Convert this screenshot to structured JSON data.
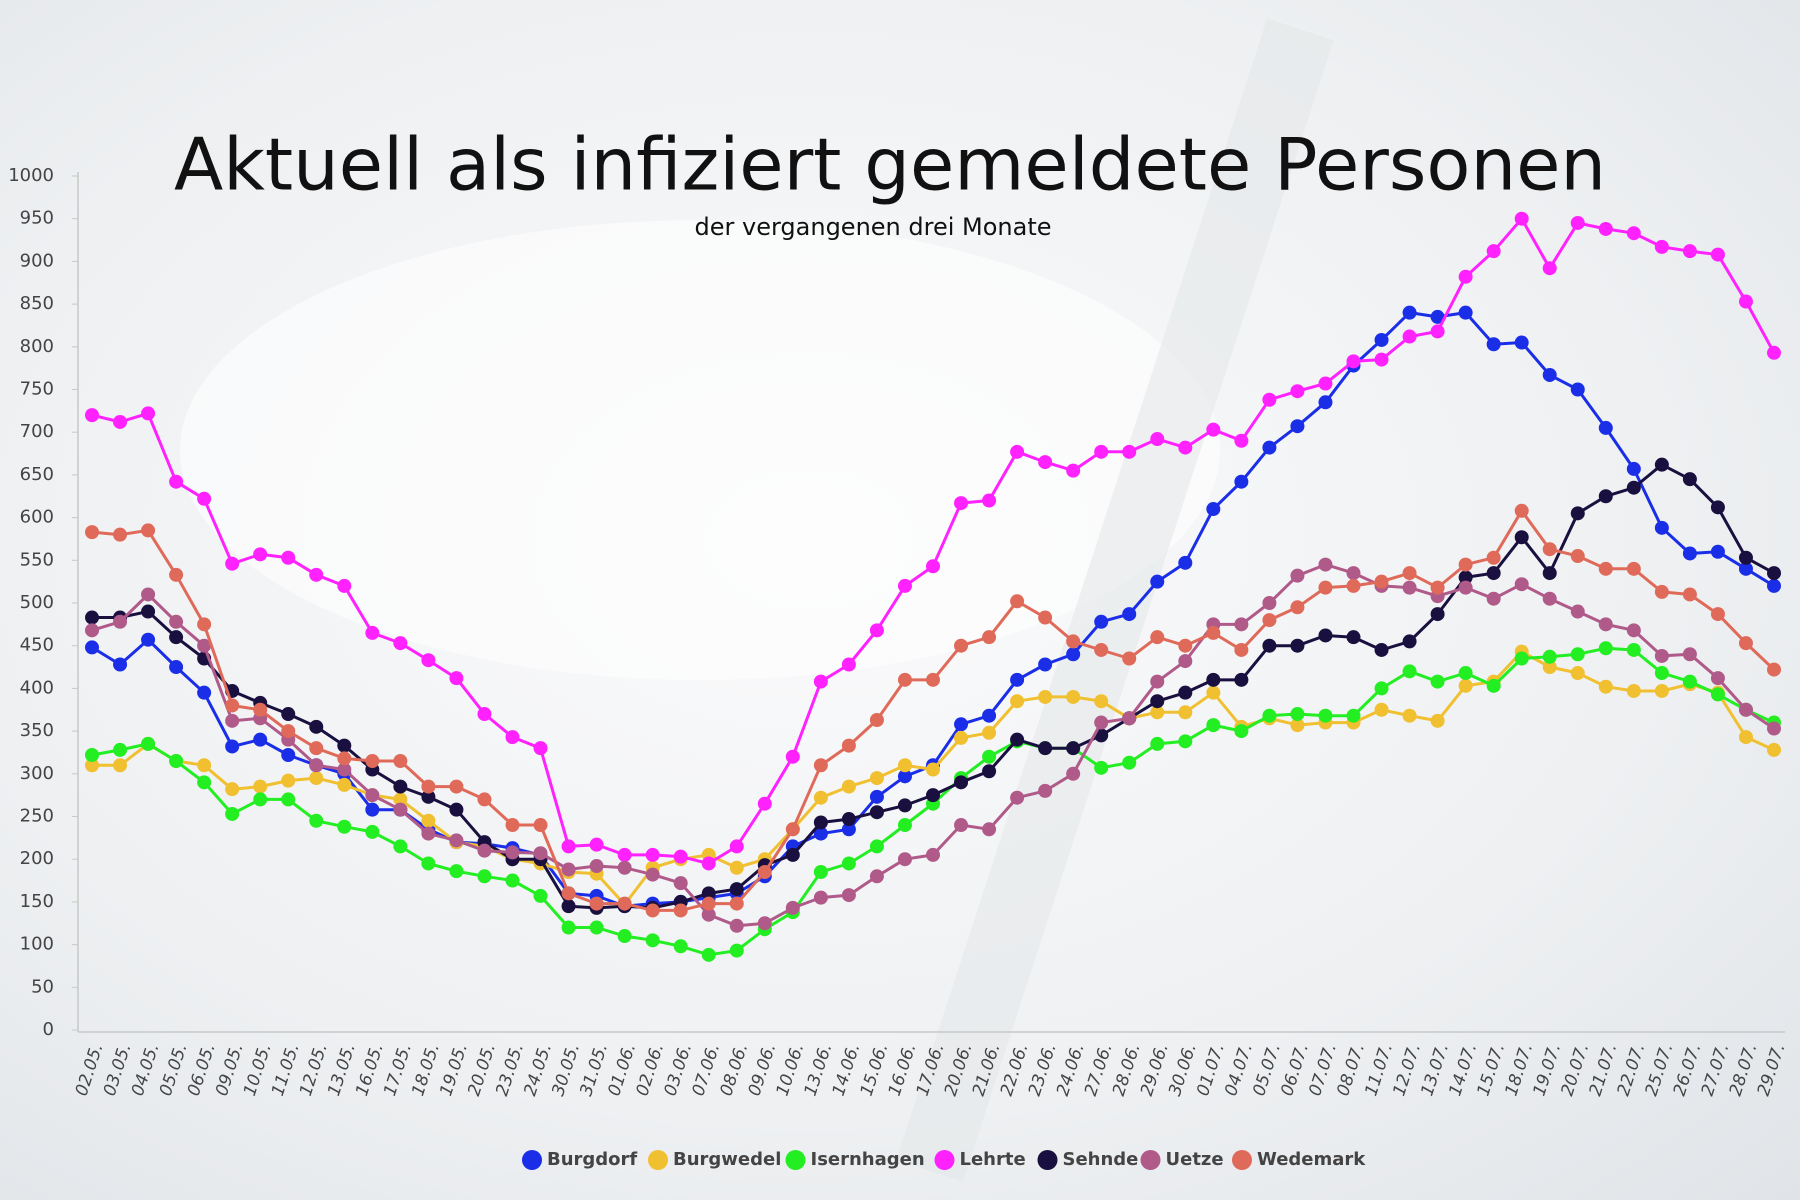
{
  "chart_data": {
    "type": "line",
    "title": "Aktuell als infiziert gemeldete Personen",
    "subtitle": "der vergangenen drei Monate",
    "categories": [
      "02.05.",
      "03.05.",
      "04.05.",
      "05.05.",
      "06.05.",
      "09.05.",
      "10.05.",
      "11.05.",
      "12.05.",
      "13.05.",
      "16.05.",
      "17.05.",
      "18.05.",
      "19.05.",
      "20.05.",
      "23.05.",
      "24.05.",
      "30.05.",
      "31.05.",
      "01.06.",
      "02.06.",
      "03.06.",
      "07.06.",
      "08.06.",
      "09.06.",
      "10.06.",
      "13.06.",
      "14.06.",
      "15.06.",
      "16.06.",
      "17.06.",
      "20.06.",
      "21.06.",
      "22.06.",
      "23.06.",
      "24.06.",
      "27.06.",
      "28.06.",
      "29.06.",
      "30.06.",
      "01.07.",
      "04.07.",
      "05.07.",
      "06.07.",
      "07.07.",
      "08.07.",
      "11.07.",
      "12.07.",
      "13.07.",
      "14.07.",
      "15.07.",
      "18.07.",
      "19.07.",
      "20.07.",
      "21.07.",
      "22.07.",
      "25.07.",
      "26.07.",
      "27.07.",
      "28.07.",
      "29.07."
    ],
    "series": [
      {
        "name": "Burgdorf",
        "color": "#1a2ee8",
        "values": [
          448,
          428,
          457,
          425,
          395,
          332,
          340,
          322,
          310,
          300,
          258,
          258,
          235,
          220,
          218,
          213,
          205,
          160,
          157,
          145,
          148,
          150,
          155,
          160,
          180,
          215,
          230,
          235,
          273,
          297,
          310,
          358,
          368,
          410,
          428,
          440,
          478,
          487,
          525,
          547,
          610,
          642,
          682,
          707,
          735,
          778,
          808,
          840,
          835,
          840,
          803,
          805,
          767,
          750,
          705,
          657,
          588,
          558,
          560,
          540,
          520
        ]
      },
      {
        "name": "Burgwedel",
        "color": "#f0c030",
        "values": [
          310,
          310,
          335,
          315,
          310,
          282,
          285,
          292,
          295,
          287,
          275,
          270,
          245,
          220,
          215,
          200,
          195,
          185,
          183,
          147,
          190,
          200,
          205,
          190,
          200,
          235,
          272,
          285,
          295,
          310,
          305,
          342,
          348,
          385,
          390,
          390,
          385,
          365,
          372,
          372,
          395,
          355,
          365,
          357,
          360,
          360,
          375,
          368,
          362,
          403,
          408,
          443,
          425,
          418,
          402,
          397,
          397,
          405,
          395,
          343,
          328
        ]
      },
      {
        "name": "Isernhagen",
        "color": "#22ee22",
        "values": [
          322,
          328,
          335,
          315,
          290,
          253,
          270,
          270,
          245,
          238,
          232,
          215,
          195,
          186,
          180,
          175,
          157,
          120,
          120,
          110,
          105,
          98,
          88,
          93,
          118,
          138,
          185,
          195,
          215,
          240,
          265,
          295,
          320,
          338,
          330,
          330,
          307,
          313,
          335,
          338,
          357,
          350,
          368,
          370,
          368,
          368,
          400,
          420,
          408,
          418,
          403,
          435,
          437,
          440,
          447,
          445,
          418,
          408,
          393,
          375,
          360
        ]
      },
      {
        "name": "Lehrte",
        "color": "#ff22ff",
        "values": [
          720,
          712,
          722,
          642,
          622,
          546,
          557,
          553,
          533,
          520,
          465,
          453,
          433,
          412,
          370,
          343,
          330,
          215,
          217,
          205,
          205,
          203,
          195,
          215,
          265,
          320,
          408,
          428,
          468,
          520,
          543,
          617,
          620,
          677,
          665,
          655,
          677,
          677,
          692,
          682,
          703,
          690,
          738,
          748,
          757,
          783,
          785,
          812,
          818,
          882,
          912,
          950,
          892,
          945,
          938,
          933,
          917,
          912,
          908,
          853,
          793
        ]
      },
      {
        "name": "Sehnde",
        "color": "#1a1040",
        "values": [
          483,
          483,
          490,
          460,
          435,
          397,
          383,
          370,
          355,
          333,
          305,
          285,
          273,
          258,
          220,
          200,
          200,
          145,
          143,
          145,
          143,
          150,
          160,
          165,
          193,
          205,
          243,
          247,
          255,
          263,
          275,
          290,
          303,
          340,
          330,
          330,
          345,
          365,
          385,
          395,
          410,
          410,
          450,
          450,
          462,
          460,
          445,
          455,
          487,
          530,
          535,
          577,
          535,
          605,
          625,
          635,
          662,
          645,
          612,
          553,
          535
        ]
      },
      {
        "name": "Uetze",
        "color": "#b05a8a",
        "values": [
          468,
          478,
          510,
          478,
          450,
          362,
          365,
          340,
          310,
          305,
          275,
          258,
          230,
          222,
          210,
          208,
          207,
          188,
          192,
          190,
          182,
          172,
          135,
          122,
          125,
          143,
          155,
          158,
          180,
          200,
          205,
          240,
          235,
          272,
          280,
          300,
          360,
          365,
          408,
          432,
          475,
          475,
          500,
          532,
          545,
          535,
          520,
          518,
          508,
          518,
          505,
          522,
          505,
          490,
          475,
          468,
          438,
          440,
          412,
          375,
          353
        ]
      },
      {
        "name": "Wedemark",
        "color": "#e06a5a",
        "values": [
          583,
          580,
          585,
          533,
          475,
          380,
          375,
          350,
          330,
          318,
          315,
          315,
          285,
          285,
          270,
          240,
          240,
          160,
          148,
          148,
          140,
          140,
          148,
          148,
          185,
          235,
          310,
          333,
          363,
          410,
          410,
          450,
          460,
          502,
          483,
          455,
          445,
          435,
          460,
          450,
          465,
          445,
          480,
          495,
          518,
          520,
          525,
          535,
          518,
          545,
          553,
          608,
          563,
          555,
          540,
          540,
          513,
          510,
          487,
          453,
          422
        ]
      }
    ],
    "ylim": [
      0,
      1000
    ],
    "yticks": [
      0,
      50,
      100,
      150,
      200,
      250,
      300,
      350,
      400,
      450,
      500,
      550,
      600,
      650,
      700,
      750,
      800,
      850,
      900,
      950,
      1000
    ],
    "grid": false,
    "legend": "bottom"
  }
}
